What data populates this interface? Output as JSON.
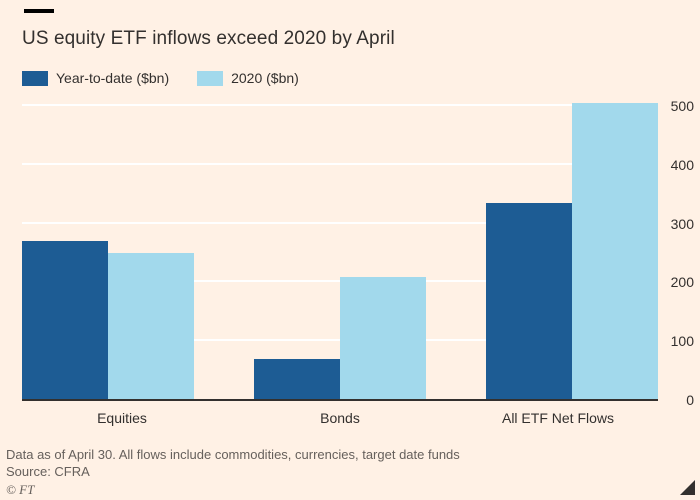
{
  "header": {
    "title": "US equity ETF inflows exceed 2020 by April"
  },
  "legend": [
    {
      "label": "Year-to-date ($bn)",
      "color": "#1D5C94"
    },
    {
      "label": "2020 ($bn)",
      "color": "#A2D9EC"
    }
  ],
  "chart_data": {
    "type": "bar",
    "title": "US equity ETF inflows exceed 2020 by April",
    "categories": [
      "Equities",
      "Bonds",
      "All ETF Net Flows"
    ],
    "series": [
      {
        "name": "Year-to-date ($bn)",
        "color": "#1D5C94",
        "values": [
          270,
          70,
          335
        ]
      },
      {
        "name": "2020 ($bn)",
        "color": "#A2D9EC",
        "values": [
          250,
          210,
          505
        ]
      }
    ],
    "xlabel": "",
    "ylabel": "",
    "ylim": [
      0,
      500
    ],
    "yticks": [
      0,
      100,
      200,
      300,
      400,
      500
    ],
    "grid": true,
    "gridcolor": "#FFFFFF",
    "legend_position": "top-left",
    "background": "#FFF1E5"
  },
  "footer": {
    "note": "Data as of April 30. All flows include commodities, currencies, target date funds",
    "source": "Source: CFRA",
    "credit": "© FT"
  }
}
